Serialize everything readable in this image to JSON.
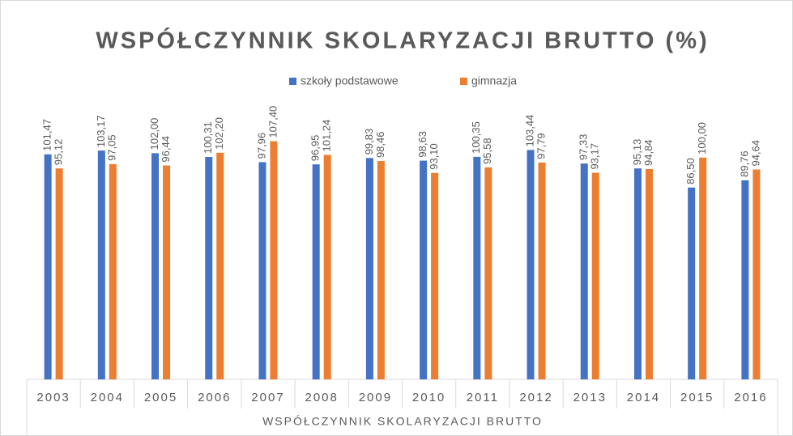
{
  "chart_data": {
    "type": "bar",
    "title": "WSPÓŁCZYNNIK SKOLARYZACJI BRUTTO (%)",
    "x_label": "WSPÓŁCZYNNIK SKOLARYZACJI BRUTTO",
    "categories": [
      "2003",
      "2004",
      "2005",
      "2006",
      "2007",
      "2008",
      "2009",
      "2010",
      "2011",
      "2012",
      "2013",
      "2014",
      "2015",
      "2016"
    ],
    "series": [
      {
        "name": "szkoły podstawowe",
        "color": "#4472c4",
        "values": [
          101.47,
          103.17,
          102.0,
          100.31,
          97.96,
          96.95,
          99.83,
          98.63,
          100.35,
          103.44,
          97.33,
          95.13,
          86.5,
          89.76
        ],
        "value_labels": [
          "101,47",
          "103,17",
          "102,00",
          "100,31",
          "97,96",
          "96,95",
          "99,83",
          "98,63",
          "100,35",
          "103,44",
          "97,33",
          "95,13",
          "86,50",
          "89,76"
        ]
      },
      {
        "name": "gimnazja",
        "color": "#ed7d31",
        "values": [
          95.12,
          97.05,
          96.44,
          102.2,
          107.4,
          101.24,
          98.46,
          93.1,
          95.58,
          97.79,
          93.17,
          94.84,
          100.0,
          94.64
        ],
        "value_labels": [
          "95,12",
          "97,05",
          "96,44",
          "102,20",
          "107,40",
          "101,24",
          "98,46",
          "93,10",
          "95,58",
          "97,79",
          "93,17",
          "94,84",
          "100,00",
          "94,64"
        ]
      }
    ],
    "ylim": [
      0,
      120
    ]
  }
}
